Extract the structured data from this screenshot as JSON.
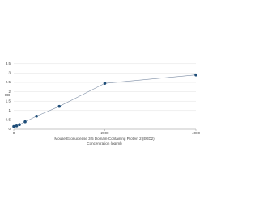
{
  "chart_data": {
    "type": "line",
    "x_label_lines": [
      "Mouse Exonuclease 3-5 Domain-Containing Protein 2 (EXD2)",
      "Concentration (pg/ml)"
    ],
    "y_label": "OD",
    "x": [
      0,
      62.5,
      125,
      250,
      500,
      1000,
      2000,
      4000
    ],
    "values": [
      0.15,
      0.18,
      0.25,
      0.4,
      0.7,
      1.22,
      2.45,
      2.9
    ],
    "color": "#1f4e79",
    "line_color": "#7f8fa6",
    "xlim": [
      0,
      4000
    ],
    "xticks": [
      0,
      2000,
      4000
    ],
    "ylim": [
      0,
      3.75
    ],
    "yticks": [
      0,
      0.5,
      1,
      1.5,
      2,
      2.5,
      3,
      3.5
    ],
    "grid": true
  }
}
